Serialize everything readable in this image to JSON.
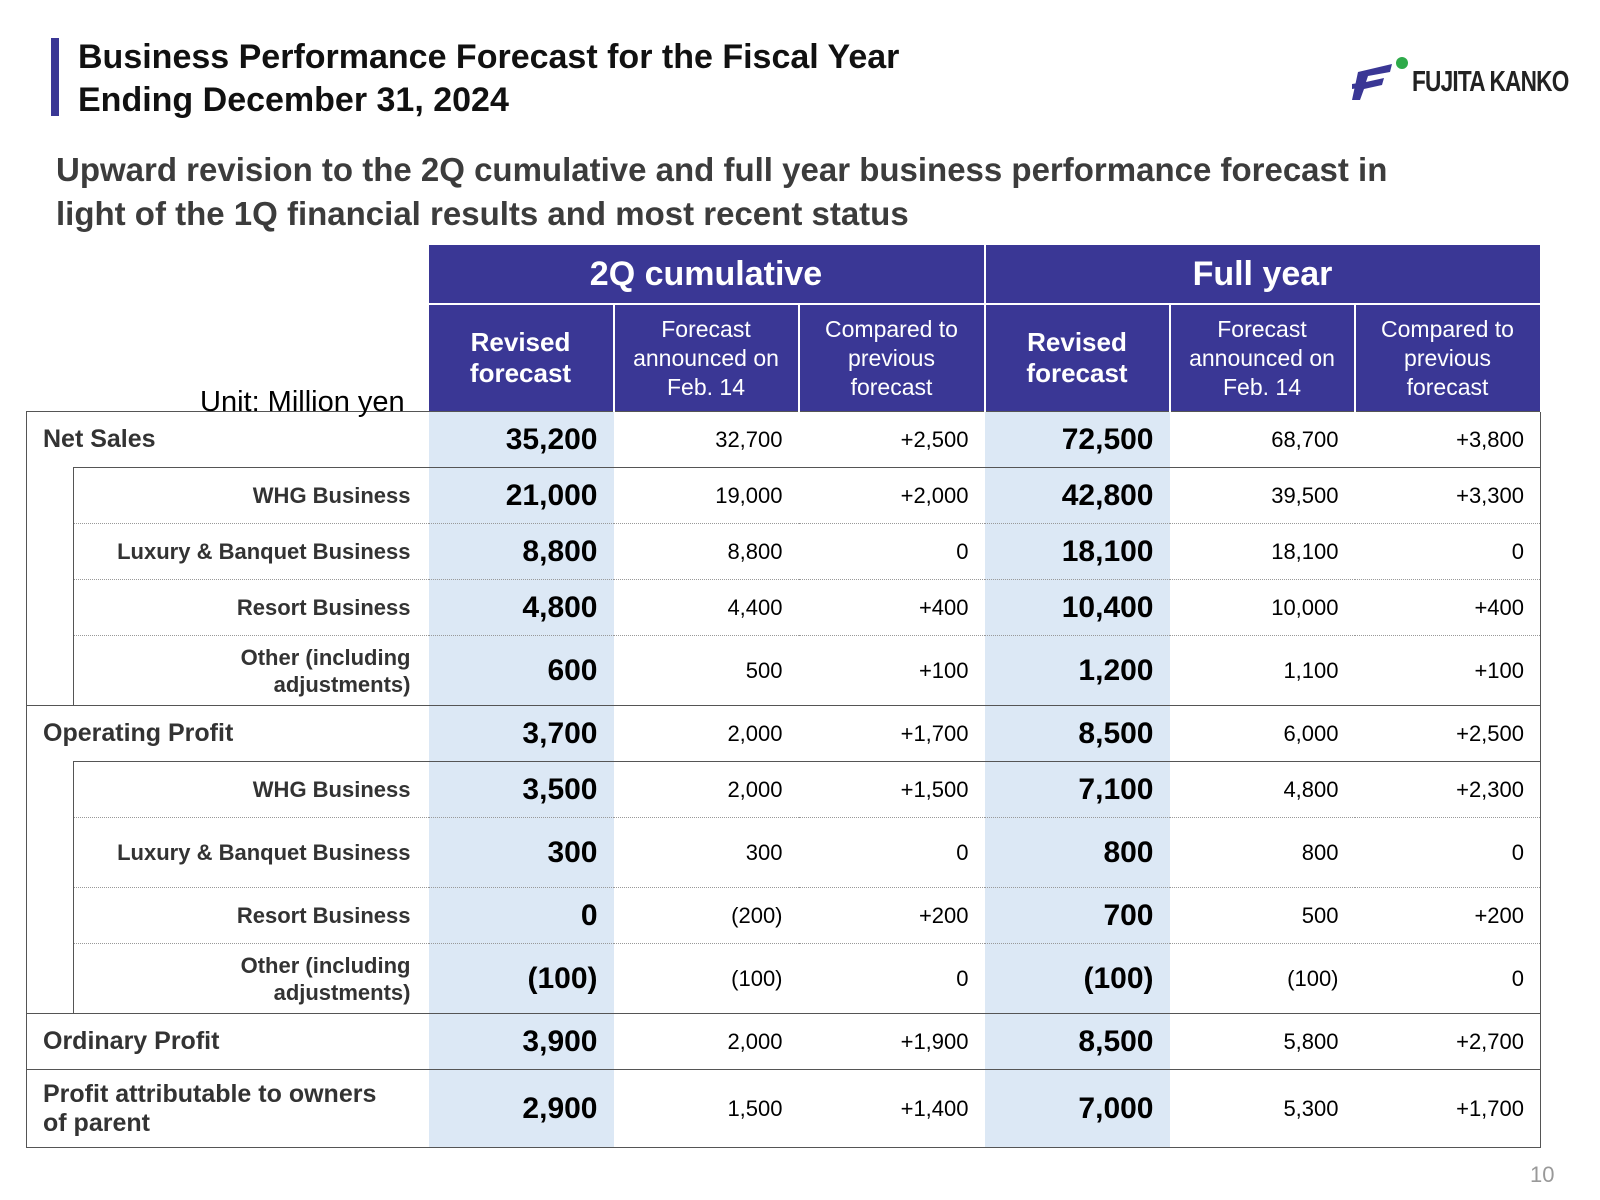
{
  "header": {
    "title_line1": "Business Performance Forecast for the Fiscal Year",
    "title_line2": "Ending December 31, 2024",
    "logo_text": "FUJITA KANKO",
    "logo_colors": {
      "mark": "#3a3795",
      "dot": "#2eaa4a"
    }
  },
  "subtitle": {
    "line1": "Upward revision to the 2Q cumulative and full year business performance forecast in",
    "line2": "light of the 1Q financial results and most recent status"
  },
  "unit": "Unit: Million yen",
  "table": {
    "groups": [
      "2Q cumulative",
      "Full year"
    ],
    "columns": [
      [
        "Revised",
        "forecast"
      ],
      [
        "Forecast",
        "announced on",
        "Feb. 14"
      ],
      [
        "Compared to",
        "previous",
        "forecast"
      ],
      [
        "Revised",
        "forecast"
      ],
      [
        "Forecast",
        "announced on",
        "Feb. 14"
      ],
      [
        "Compared to",
        "previous",
        "forecast"
      ]
    ],
    "rows": [
      {
        "label": [
          "Net Sales"
        ],
        "type": "main",
        "values": [
          "35,200",
          "32,700",
          "+2,500",
          "72,500",
          "68,700",
          "+3,800"
        ]
      },
      {
        "label": [
          "WHG Business"
        ],
        "type": "sub",
        "values": [
          "21,000",
          "19,000",
          "+2,000",
          "42,800",
          "39,500",
          "+3,300"
        ]
      },
      {
        "label": [
          "Luxury & Banquet Business"
        ],
        "type": "sub",
        "values": [
          "8,800",
          "8,800",
          "0",
          "18,100",
          "18,100",
          "0"
        ]
      },
      {
        "label": [
          "Resort Business"
        ],
        "type": "sub",
        "values": [
          "4,800",
          "4,400",
          "+400",
          "10,400",
          "10,000",
          "+400"
        ]
      },
      {
        "label": [
          "Other (including",
          "adjustments)"
        ],
        "type": "sub",
        "values": [
          "600",
          "500",
          "+100",
          "1,200",
          "1,100",
          "+100"
        ]
      },
      {
        "label": [
          "Operating Profit"
        ],
        "type": "main",
        "values": [
          "3,700",
          "2,000",
          "+1,700",
          "8,500",
          "6,000",
          "+2,500"
        ]
      },
      {
        "label": [
          "WHG Business"
        ],
        "type": "sub",
        "values": [
          "3,500",
          "2,000",
          "+1,500",
          "7,100",
          "4,800",
          "+2,300"
        ]
      },
      {
        "label": [
          "Luxury & Banquet Business"
        ],
        "type": "sub",
        "values": [
          "300",
          "300",
          "0",
          "800",
          "800",
          "0"
        ]
      },
      {
        "label": [
          "Resort Business"
        ],
        "type": "sub",
        "values": [
          "0",
          "(200)",
          "+200",
          "700",
          "500",
          "+200"
        ]
      },
      {
        "label": [
          "Other (including",
          "adjustments)"
        ],
        "type": "sub",
        "values": [
          "(100)",
          "(100)",
          "0",
          "(100)",
          "(100)",
          "0"
        ]
      },
      {
        "label": [
          "Ordinary Profit"
        ],
        "type": "main",
        "values": [
          "3,900",
          "2,000",
          "+1,900",
          "8,500",
          "5,800",
          "+2,700"
        ]
      },
      {
        "label": [
          "Profit attributable to owners",
          "of parent"
        ],
        "type": "main",
        "values": [
          "2,900",
          "1,500",
          "+1,400",
          "7,000",
          "5,300",
          "+1,700"
        ]
      }
    ]
  },
  "page_number": "10"
}
